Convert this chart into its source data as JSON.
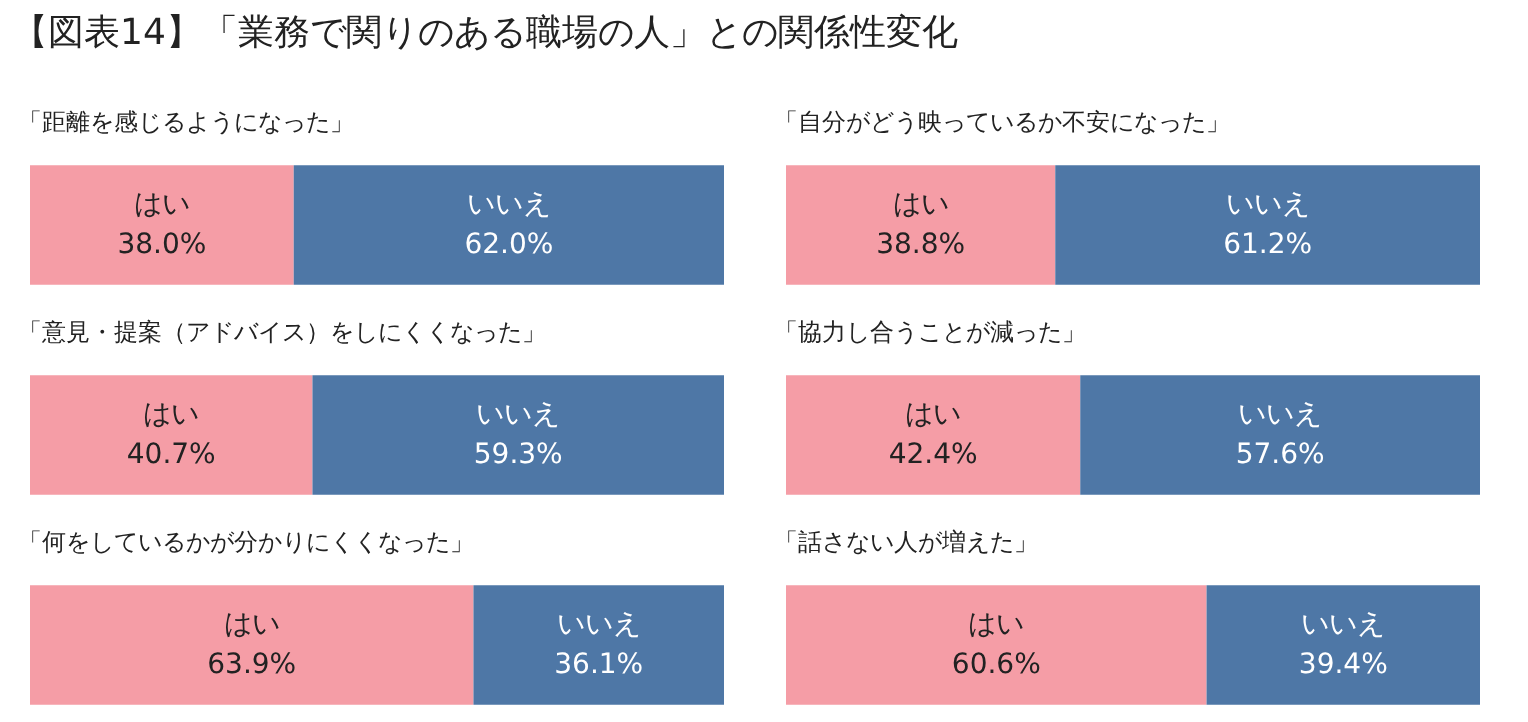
{
  "chart_data": [
    {
      "type": "other",
      "title": "【図表14】「業務で関りのある職場の人」との関係性変化"
    },
    {
      "type": "bar",
      "title": "「距離を感じるようになった」",
      "orientation": "horizontal",
      "stacked": true,
      "categories": [
        null
      ],
      "xlim": [
        0,
        100
      ],
      "legend": false,
      "series": [
        {
          "name": "はい",
          "color": "#f59da6",
          "values": [
            38.0
          ],
          "value_labels": [
            "38.0%"
          ]
        },
        {
          "name": "いいえ",
          "color": "#4e77a6",
          "values": [
            62.0
          ],
          "value_labels": [
            "62.0%"
          ]
        }
      ]
    },
    {
      "type": "bar",
      "title": "「自分がどう映っているか不安になった」",
      "orientation": "horizontal",
      "stacked": true,
      "categories": [
        null
      ],
      "xlim": [
        0,
        100
      ],
      "legend": false,
      "series": [
        {
          "name": "はい",
          "color": "#f59da6",
          "values": [
            38.8
          ],
          "value_labels": [
            "38.8%"
          ]
        },
        {
          "name": "いいえ",
          "color": "#4e77a6",
          "values": [
            61.2
          ],
          "value_labels": [
            "61.2%"
          ]
        }
      ]
    },
    {
      "type": "bar",
      "title": "「意見・提案（アドバイス）をしにくくなった」",
      "orientation": "horizontal",
      "stacked": true,
      "categories": [
        null
      ],
      "xlim": [
        0,
        100
      ],
      "legend": false,
      "series": [
        {
          "name": "はい",
          "color": "#f59da6",
          "values": [
            40.7
          ],
          "value_labels": [
            "40.7%"
          ]
        },
        {
          "name": "いいえ",
          "color": "#4e77a6",
          "values": [
            59.3
          ],
          "value_labels": [
            "59.3%"
          ]
        }
      ]
    },
    {
      "type": "bar",
      "title": "「協力し合うことが減った」",
      "orientation": "horizontal",
      "stacked": true,
      "categories": [
        null
      ],
      "xlim": [
        0,
        100
      ],
      "legend": false,
      "series": [
        {
          "name": "はい",
          "color": "#f59da6",
          "values": [
            42.4
          ],
          "value_labels": [
            "42.4%"
          ]
        },
        {
          "name": "いいえ",
          "color": "#4e77a6",
          "values": [
            57.6
          ],
          "value_labels": [
            "57.6%"
          ]
        }
      ]
    },
    {
      "type": "bar",
      "title": "「何をしているかが分かりにくくなった」",
      "orientation": "horizontal",
      "stacked": true,
      "categories": [
        null
      ],
      "xlim": [
        0,
        100
      ],
      "legend": false,
      "series": [
        {
          "name": "はい",
          "color": "#f59da6",
          "values": [
            63.9
          ],
          "value_labels": [
            "63.9%"
          ]
        },
        {
          "name": "いいえ",
          "color": "#4e77a6",
          "values": [
            36.1
          ],
          "value_labels": [
            "36.1%"
          ]
        }
      ]
    },
    {
      "type": "bar",
      "title": "「話さない人が増えた」",
      "orientation": "horizontal",
      "stacked": true,
      "categories": [
        null
      ],
      "xlim": [
        0,
        100
      ],
      "legend": false,
      "series": [
        {
          "name": "はい",
          "color": "#f59da6",
          "values": [
            60.6
          ],
          "value_labels": [
            "60.6%"
          ]
        },
        {
          "name": "いいえ",
          "color": "#4e77a6",
          "values": [
            39.4
          ],
          "value_labels": [
            "39.4%"
          ]
        }
      ]
    }
  ]
}
